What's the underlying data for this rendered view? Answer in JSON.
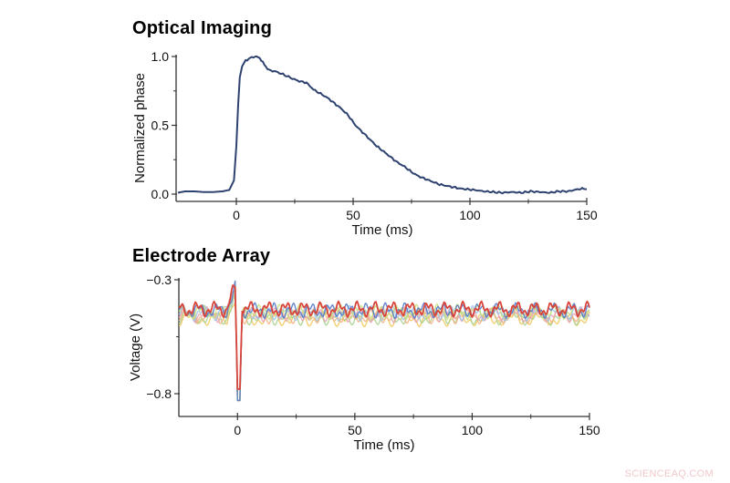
{
  "panels": {
    "top": {
      "title": "Optical Imaging"
    },
    "bottom": {
      "title": "Electrode Array"
    }
  },
  "watermark": "SCIENCEAQ.COM",
  "chart_data": [
    {
      "type": "line",
      "title": "Optical Imaging",
      "xlabel": "Time (ms)",
      "ylabel": "Normalized phase",
      "xlim": [
        -25,
        150
      ],
      "ylim": [
        0.0,
        1.0
      ],
      "xticks": [
        0,
        50,
        100,
        150
      ],
      "xtick_labels": [
        "0",
        "50",
        "100",
        "150"
      ],
      "xminor_ticks": [
        25,
        75,
        125
      ],
      "yticks": [
        0.0,
        0.5,
        1.0
      ],
      "ytick_labels": [
        "0.0",
        "0.5",
        "1.0"
      ],
      "yminor_ticks": [
        0.25,
        0.75
      ],
      "grid": false,
      "color": "#2e4270",
      "series": [
        {
          "name": "Normalized phase",
          "x": [
            -25,
            -22,
            -18,
            -14,
            -10,
            -6,
            -3,
            -1,
            0,
            0.8,
            1.5,
            2.5,
            4,
            6,
            8,
            10,
            12,
            14,
            17,
            20,
            24,
            27,
            30,
            33,
            36,
            39,
            42,
            45,
            48,
            51,
            54,
            57,
            60,
            63,
            66,
            69,
            72,
            75,
            78,
            81,
            84,
            87,
            90,
            93,
            96,
            99,
            102,
            106,
            110,
            114,
            118,
            122,
            126,
            130,
            134,
            138,
            142,
            146,
            148,
            150
          ],
          "y": [
            0.01,
            0.02,
            0.02,
            0.015,
            0.015,
            0.02,
            0.03,
            0.1,
            0.35,
            0.65,
            0.85,
            0.93,
            0.97,
            0.99,
            1.0,
            0.99,
            0.94,
            0.9,
            0.89,
            0.87,
            0.84,
            0.82,
            0.81,
            0.76,
            0.73,
            0.7,
            0.66,
            0.62,
            0.57,
            0.5,
            0.45,
            0.4,
            0.35,
            0.31,
            0.27,
            0.23,
            0.2,
            0.16,
            0.13,
            0.11,
            0.09,
            0.07,
            0.06,
            0.05,
            0.04,
            0.035,
            0.03,
            0.02,
            0.015,
            0.01,
            0.015,
            0.01,
            0.02,
            0.015,
            0.01,
            0.02,
            0.02,
            0.035,
            0.04,
            0.035
          ]
        }
      ]
    },
    {
      "type": "line",
      "title": "Electrode Array",
      "xlabel": "Time (ms)",
      "ylabel": "Voltage (V)",
      "xlim": [
        -25,
        150
      ],
      "ylim": [
        -0.9,
        -0.3
      ],
      "xticks": [
        0,
        50,
        100,
        150
      ],
      "xtick_labels": [
        "0",
        "50",
        "100",
        "150"
      ],
      "xminor_ticks": [
        25,
        75,
        125
      ],
      "yticks": [
        -0.3,
        -0.8
      ],
      "ytick_labels": [
        "−0.3",
        "−0.8"
      ],
      "yminor_ticks": [
        -0.55
      ],
      "grid": false,
      "description": "Many overlaid electrode traces oscillating around -0.45 V (band ~-0.41 to -0.49 V) with a sharp negative spike at ~0.5 ms reaching ~-0.78 V (red) and ~-0.83 V (green/blue).",
      "baseline": -0.45,
      "noise_amplitude": 0.035,
      "spike": {
        "time": 0.5,
        "min_red": -0.78,
        "min_other": -0.83,
        "pre_peak": -0.32,
        "post_peak": -0.37
      },
      "series": [
        {
          "name": "trace 1",
          "color": "#f2c75c"
        },
        {
          "name": "trace 2",
          "color": "#a8d08d"
        },
        {
          "name": "trace 3",
          "color": "#f4b183"
        },
        {
          "name": "trace 4",
          "color": "#e8a0b0"
        },
        {
          "name": "trace 5",
          "color": "#9dc3e6"
        },
        {
          "name": "trace 6",
          "color": "#c9e07a"
        },
        {
          "name": "trace 7",
          "color": "#4a72c4"
        },
        {
          "name": "trace 8 (highlighted)",
          "color": "#d9453b"
        }
      ]
    }
  ]
}
